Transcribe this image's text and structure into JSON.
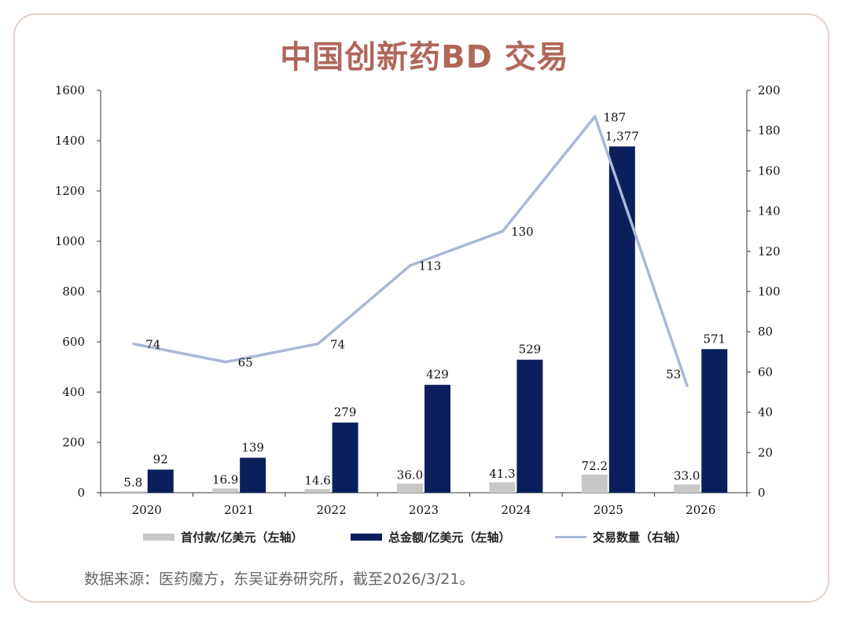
{
  "title": "中国创新药BD 交易",
  "source": "数据来源：医药魔方，东吴证券研究所，截至2026/3/21。",
  "colors": {
    "upfront": "#c8c8c8",
    "total": "#0a1f5c",
    "count": "#a9b8d6",
    "title": "#b0675a"
  },
  "chart_data": {
    "type": "bar",
    "categories": [
      "2020",
      "2021",
      "2022",
      "2023",
      "2024",
      "2025",
      "2026"
    ],
    "series": [
      {
        "name": "首付款/亿美元（左轴）",
        "type": "bar",
        "axis": "left",
        "values": [
          5.8,
          16.9,
          14.6,
          36.0,
          41.3,
          72.2,
          33.0
        ],
        "labels": [
          "5.8",
          "16.9",
          "14.6",
          "36.0",
          "41.3",
          "72.2",
          "33.0"
        ]
      },
      {
        "name": "总金额/亿美元（左轴）",
        "type": "bar",
        "axis": "left",
        "values": [
          92,
          139,
          279,
          429,
          529,
          1377,
          571
        ],
        "labels": [
          "92",
          "139",
          "279",
          "429",
          "529",
          "1,377",
          "571"
        ]
      },
      {
        "name": "交易数量（右轴）",
        "type": "line",
        "axis": "right",
        "values": [
          74,
          65,
          74,
          113,
          130,
          187,
          53
        ],
        "labels": [
          "74",
          "65",
          "74",
          "113",
          "130",
          "187",
          "53"
        ]
      }
    ],
    "y_left": {
      "min": 0,
      "max": 1600,
      "ticks": [
        0,
        200,
        400,
        600,
        800,
        1000,
        1200,
        1400,
        1600
      ]
    },
    "y_right": {
      "min": 0,
      "max": 200,
      "ticks": [
        0,
        20,
        40,
        60,
        80,
        100,
        120,
        140,
        160,
        180,
        200
      ]
    },
    "legend": "bottom",
    "grid": false
  }
}
